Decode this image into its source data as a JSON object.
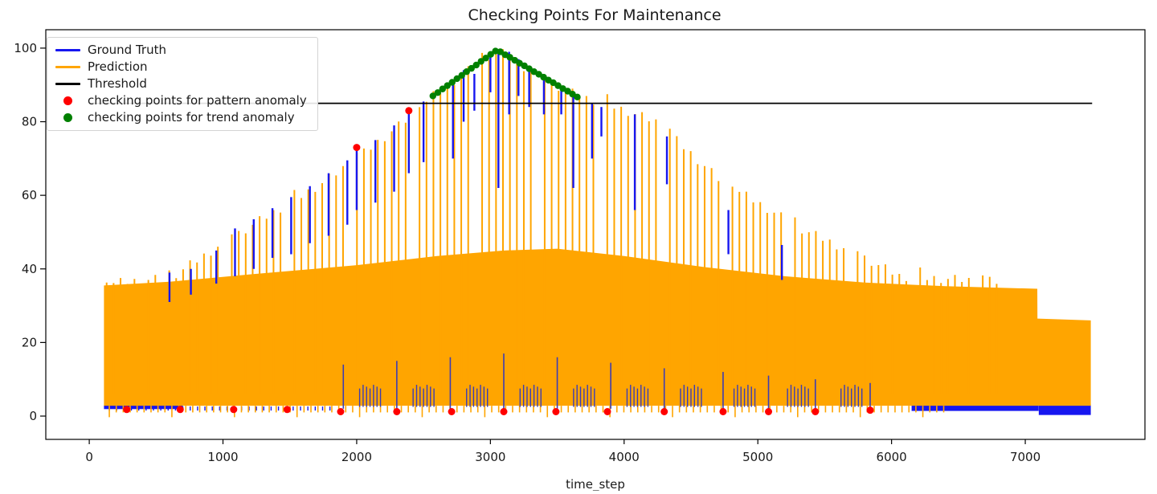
{
  "chart_data": {
    "type": "line",
    "title": "Checking Points For Maintenance",
    "xlabel": "time_step",
    "ylabel": "",
    "x_ticks": [
      0,
      1000,
      2000,
      3000,
      4000,
      5000,
      6000,
      7000
    ],
    "y_ticks": [
      0,
      20,
      40,
      60,
      80,
      100
    ],
    "xlim": [
      -325,
      7895
    ],
    "ylim": [
      -6.33,
      105
    ],
    "grid": false,
    "legend_position": "upper left",
    "colors": {
      "ground_truth": "#1616f0",
      "prediction": "#ffa500",
      "threshold": "#000000",
      "pattern_anomaly": "#ff0000",
      "trend_anomaly": "#008000",
      "inner_blue": "#3c3cb4",
      "axis": "#000000",
      "text": "#1a1a1a"
    },
    "legend": {
      "items": [
        {
          "label": "Ground Truth",
          "marker": "line",
          "color": "#1616f0"
        },
        {
          "label": "Prediction",
          "marker": "line",
          "color": "#ffa500"
        },
        {
          "label": "Threshold",
          "marker": "line",
          "color": "#000000"
        },
        {
          "label": "checking points for pattern anomaly",
          "marker": "dot",
          "color": "#ff0000"
        },
        {
          "label": "checking points for trend anomaly",
          "marker": "dot",
          "color": "#008000"
        }
      ]
    },
    "threshold": {
      "value": 85,
      "x_start": 0,
      "x_end": 7500
    },
    "prediction_band": {
      "top": [
        [
          110,
          35.5
        ],
        [
          600,
          36.5
        ],
        [
          1200,
          38.5
        ],
        [
          2000,
          41
        ],
        [
          2600,
          43.5
        ],
        [
          3100,
          45
        ],
        [
          3500,
          45.5
        ],
        [
          4000,
          43.5
        ],
        [
          4600,
          40.5
        ],
        [
          5200,
          38
        ],
        [
          5800,
          36.3
        ],
        [
          6400,
          35.3
        ],
        [
          7090,
          34.6
        ],
        [
          7091,
          26.5
        ],
        [
          7490,
          26
        ]
      ],
      "bottom": 2.8,
      "x_start": 110,
      "x_end": 7490
    },
    "prediction_spikes": {
      "x_start": 130,
      "x_end": 6800,
      "spacing": 52,
      "skip_every": 9,
      "base": 6,
      "envelope": [
        [
          130,
          36
        ],
        [
          600,
          37.5
        ],
        [
          1130,
          50
        ],
        [
          1730,
          63
        ],
        [
          2000,
          70
        ],
        [
          2390,
          81
        ],
        [
          2570,
          87
        ],
        [
          3050,
          99.5
        ],
        [
          3400,
          91.5
        ],
        [
          3660,
          87
        ],
        [
          3900,
          84.5
        ],
        [
          4240,
          80
        ],
        [
          4720,
          64
        ],
        [
          5320,
          51
        ],
        [
          5800,
          43
        ],
        [
          6060,
          38
        ],
        [
          6800,
          36.5
        ]
      ]
    },
    "prediction_bottom_teeth": {
      "x_start": 150,
      "x_end": 6400,
      "spacing": 52,
      "y_top": 2.8,
      "y_bottom": 1.0,
      "deep_every": 9,
      "deep_y": -0.3
    },
    "ground_truth_bands": [
      {
        "x_start": 110,
        "x_end": 700,
        "y_bottom": 1.9,
        "y_top": 2.9
      },
      {
        "x_start": 6150,
        "x_end": 7100,
        "y_bottom": 1.4,
        "y_top": 3.0
      },
      {
        "x_start": 7101,
        "x_end": 7490,
        "y_bottom": 0.3,
        "y_top": 3.2
      }
    ],
    "ground_truth_bottom_notches": {
      "x_start": 150,
      "x_end": 1850,
      "spacing": 55,
      "y_top": 2.6,
      "y_bottom": 1.5
    },
    "ground_truth_segments": [
      [
        600,
        39,
        31
      ],
      [
        760,
        40,
        33
      ],
      [
        950,
        45,
        36
      ],
      [
        1090,
        51,
        38
      ],
      [
        1230,
        53.5,
        40
      ],
      [
        1370,
        56.5,
        43
      ],
      [
        1510,
        59.5,
        44
      ],
      [
        1650,
        62.5,
        47
      ],
      [
        1790,
        66,
        49
      ],
      [
        1930,
        69.5,
        52
      ],
      [
        2000,
        73,
        56
      ],
      [
        2140,
        75,
        58
      ],
      [
        2280,
        79,
        61
      ],
      [
        2390,
        83,
        66
      ],
      [
        2500,
        85.5,
        69
      ],
      [
        2720,
        90,
        70
      ],
      [
        2800,
        94,
        80
      ],
      [
        2880,
        93,
        83
      ],
      [
        3000,
        98,
        88
      ],
      [
        3060,
        99.5,
        62
      ],
      [
        3140,
        99,
        82
      ],
      [
        3210,
        97,
        87
      ],
      [
        3290,
        94,
        84
      ],
      [
        3400,
        92,
        82
      ],
      [
        3530,
        89,
        82
      ],
      [
        3620,
        87,
        62
      ],
      [
        3760,
        85,
        70
      ],
      [
        3830,
        84,
        76
      ],
      [
        4080,
        82,
        56
      ],
      [
        4320,
        76,
        63
      ],
      [
        4780,
        56,
        44
      ],
      [
        5180,
        46.5,
        37
      ]
    ],
    "ground_truth_tall_bottom_spikes": [
      [
        1900,
        14,
        2
      ],
      [
        2300,
        15,
        2
      ],
      [
        2700,
        16,
        2
      ],
      [
        3100,
        17,
        2
      ],
      [
        3500,
        16,
        2
      ],
      [
        3900,
        14.5,
        2
      ],
      [
        4300,
        13,
        2
      ],
      [
        4740,
        12,
        2
      ],
      [
        5080,
        11,
        2
      ],
      [
        5430,
        10,
        2
      ],
      [
        5840,
        9,
        2
      ]
    ],
    "ground_truth_short_spike_clusters": {
      "centers": [
        2100,
        2500,
        2900,
        3300,
        3700,
        4100,
        4500,
        4900,
        5300,
        5700
      ],
      "count": 7,
      "spacing": 26,
      "y_bottom": 2.5,
      "y_top": 7.5
    },
    "pattern_anomaly_points": [
      [
        280,
        1.8
      ],
      [
        680,
        1.8
      ],
      [
        1080,
        1.8
      ],
      [
        1480,
        1.8
      ],
      [
        1880,
        1.2
      ],
      [
        2000,
        73
      ],
      [
        2300,
        1.2
      ],
      [
        2390,
        83
      ],
      [
        2710,
        1.2
      ],
      [
        3100,
        1.2
      ],
      [
        3490,
        1.2
      ],
      [
        3875,
        1.2
      ],
      [
        4300,
        1.2
      ],
      [
        4740,
        1.2
      ],
      [
        5080,
        1.2
      ],
      [
        5430,
        1.2
      ],
      [
        5840,
        1.6
      ]
    ],
    "trend_anomaly_points": [
      [
        2570,
        87.0
      ],
      [
        2606,
        87.9
      ],
      [
        2642,
        88.9
      ],
      [
        2678,
        89.8
      ],
      [
        2714,
        90.7
      ],
      [
        2750,
        91.7
      ],
      [
        2786,
        92.6
      ],
      [
        2822,
        93.6
      ],
      [
        2858,
        94.5
      ],
      [
        2894,
        95.4
      ],
      [
        2930,
        96.4
      ],
      [
        2966,
        97.3
      ],
      [
        3002,
        98.3
      ],
      [
        3038,
        99.2
      ],
      [
        3074,
        99.0
      ],
      [
        3110,
        98.2
      ],
      [
        3146,
        97.5
      ],
      [
        3182,
        96.7
      ],
      [
        3218,
        95.9
      ],
      [
        3254,
        95.2
      ],
      [
        3290,
        94.4
      ],
      [
        3326,
        93.6
      ],
      [
        3362,
        92.9
      ],
      [
        3398,
        92.1
      ],
      [
        3434,
        91.3
      ],
      [
        3470,
        90.6
      ],
      [
        3506,
        89.8
      ],
      [
        3542,
        89.0
      ],
      [
        3578,
        88.3
      ],
      [
        3614,
        87.5
      ],
      [
        3650,
        86.7
      ]
    ]
  }
}
